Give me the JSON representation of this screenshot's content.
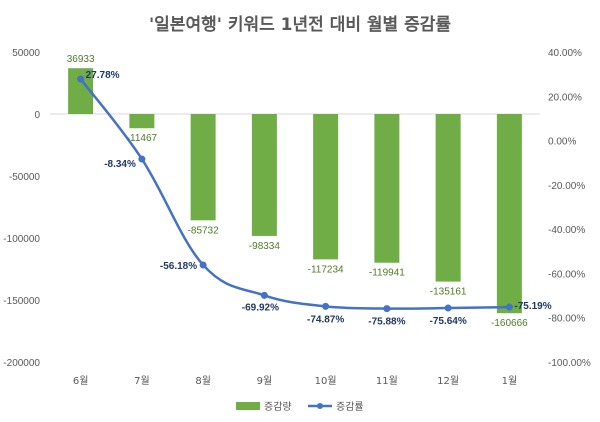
{
  "chart_data": {
    "type": "bar",
    "title": "'일본여행' 키워드 1년전 대비 월별 증감률",
    "categories": [
      "6월",
      "7월",
      "8월",
      "9월",
      "10월",
      "11월",
      "12월",
      "1월"
    ],
    "series": [
      {
        "name": "증감량",
        "type": "bar",
        "axis": "left",
        "color": "#70ad47",
        "values": [
          36933,
          -11467,
          -85732,
          -98334,
          -117234,
          -119941,
          -135161,
          -160666
        ],
        "labels": [
          "36933",
          "-11467",
          "-85732",
          "-98334",
          "-117234",
          "-119941",
          "-135161",
          "-160666"
        ]
      },
      {
        "name": "증감률",
        "type": "line",
        "axis": "right",
        "color": "#4472c4",
        "values": [
          27.78,
          -8.34,
          -56.18,
          -69.92,
          -74.87,
          -75.88,
          -75.64,
          -75.19
        ],
        "labels": [
          "27.78%",
          "-8.34%",
          "-56.18%",
          "-69.92%",
          "-74.87%",
          "-75.88%",
          "-75.64%",
          "-75.19%"
        ]
      }
    ],
    "y_left": {
      "range": [
        -200000,
        50000
      ],
      "ticks": [
        50000,
        0,
        -50000,
        -100000,
        -150000,
        -200000
      ],
      "tick_labels": [
        "50000",
        "0",
        "-50000",
        "-100000",
        "-150000",
        "-200000"
      ]
    },
    "y_right": {
      "range": [
        -100,
        40
      ],
      "ticks": [
        40,
        20,
        0,
        -20,
        -40,
        -60,
        -80,
        -100
      ],
      "tick_labels": [
        "40.00%",
        "20.00%",
        "0.00%",
        "-20.00%",
        "-40.00%",
        "-60.00%",
        "-80.00%",
        "-100.00%"
      ]
    },
    "legend": {
      "position": "bottom",
      "items": [
        "증감량",
        "증감률"
      ]
    },
    "grid": false
  }
}
